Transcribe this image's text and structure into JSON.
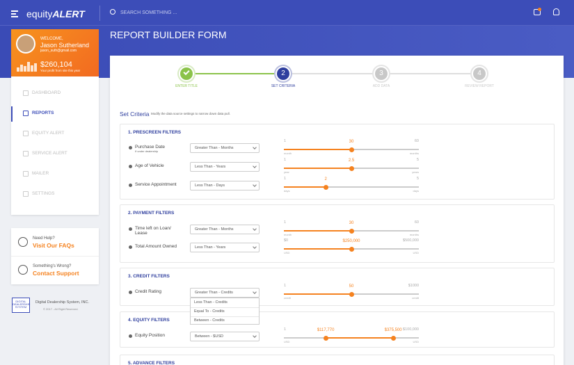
{
  "header": {
    "logo_light": "equity",
    "logo_bold": "ALERT",
    "search_placeholder": "SEARCH SOMETHING ..."
  },
  "profile": {
    "greeting": "WELCOME,",
    "name": "Jason Sutherland",
    "email": "jason_suth@gmail.com",
    "amount": "$260,104",
    "amount_caption": "Your profit from site this year"
  },
  "nav": [
    "DASHBOARD",
    "REPORTS",
    "EQUITY ALERT",
    "SERVICE ALERT",
    "MAILER",
    "SETTINGS"
  ],
  "help": [
    {
      "question": "Need Help?",
      "link": "Visit Our FAQs"
    },
    {
      "question": "Something's Wrong?",
      "link": "Contact Support"
    }
  ],
  "footer": {
    "logo": "DIGITAL DEALERSHIP SYSTEM",
    "company": "Digital Dealership System, INC.",
    "copyright": "© 2017 - All Right Reserved."
  },
  "page_title": "REPORT BUILDER FORM",
  "steps": [
    {
      "label": "ENTER TITLE"
    },
    {
      "number": "2",
      "label": "SET CRITERIA"
    },
    {
      "number": "3",
      "label": "ADD DATA"
    },
    {
      "number": "4",
      "label": "REVIEW REPORT"
    }
  ],
  "criteria": {
    "title": "Set Criteria",
    "description": "Modify the data source settings to narrow down data pull."
  },
  "sections": [
    {
      "title": "1. PRESCREEN FILTERS",
      "rows": [
        {
          "label": "Purchase Date",
          "sublabel": "If under dealership",
          "select": "Greater Than - Months",
          "min": "1",
          "min_unit": "month",
          "max": "60",
          "max_unit": "months",
          "values": [
            "30"
          ]
        },
        {
          "label": "Age of Vehicle",
          "select": "Less Than - Years",
          "min": "1",
          "min_unit": "year",
          "max": "5",
          "max_unit": "years",
          "values": [
            "2.5"
          ]
        },
        {
          "label": "Service Appointment",
          "select": "Less Than - Days",
          "min": "1",
          "min_unit": "days",
          "max": "5",
          "max_unit": "days",
          "values": [
            "2"
          ]
        }
      ]
    },
    {
      "title": "2. PAYMENT FILTERS",
      "rows": [
        {
          "label": "Time left on Loan/ Lease",
          "select": "Greater Than - Months",
          "min": "1",
          "min_unit": "month",
          "max": "60",
          "max_unit": "months",
          "values": [
            "30"
          ]
        },
        {
          "label": "Total Amount Owned",
          "select": "Less Than - Years",
          "min": "$0",
          "min_unit": "USD",
          "max": "$500,000",
          "max_unit": "USD",
          "values": [
            "$250,000"
          ]
        }
      ]
    },
    {
      "title": "3. CREDIT FILTERS",
      "rows": [
        {
          "label": "Credit Rating",
          "select": "Greater Than - Credits",
          "options": [
            "Less Than - Credits",
            "Equal To - Credits",
            "Between - Credits"
          ],
          "min": "1",
          "min_unit": "credit",
          "max": "$1000",
          "max_unit": "credit",
          "values": [
            "50"
          ]
        }
      ]
    },
    {
      "title": "4. EQUITY FILTERS",
      "rows": [
        {
          "label": "Equity Position",
          "select": "Between - $USD",
          "min": "1",
          "min_unit": "USD",
          "max": "$100,000",
          "max_unit": "USD",
          "values": [
            "$117,770",
            "$375,500"
          ]
        }
      ]
    },
    {
      "title": "5. ADVANCE FILTERS",
      "rows": []
    }
  ]
}
